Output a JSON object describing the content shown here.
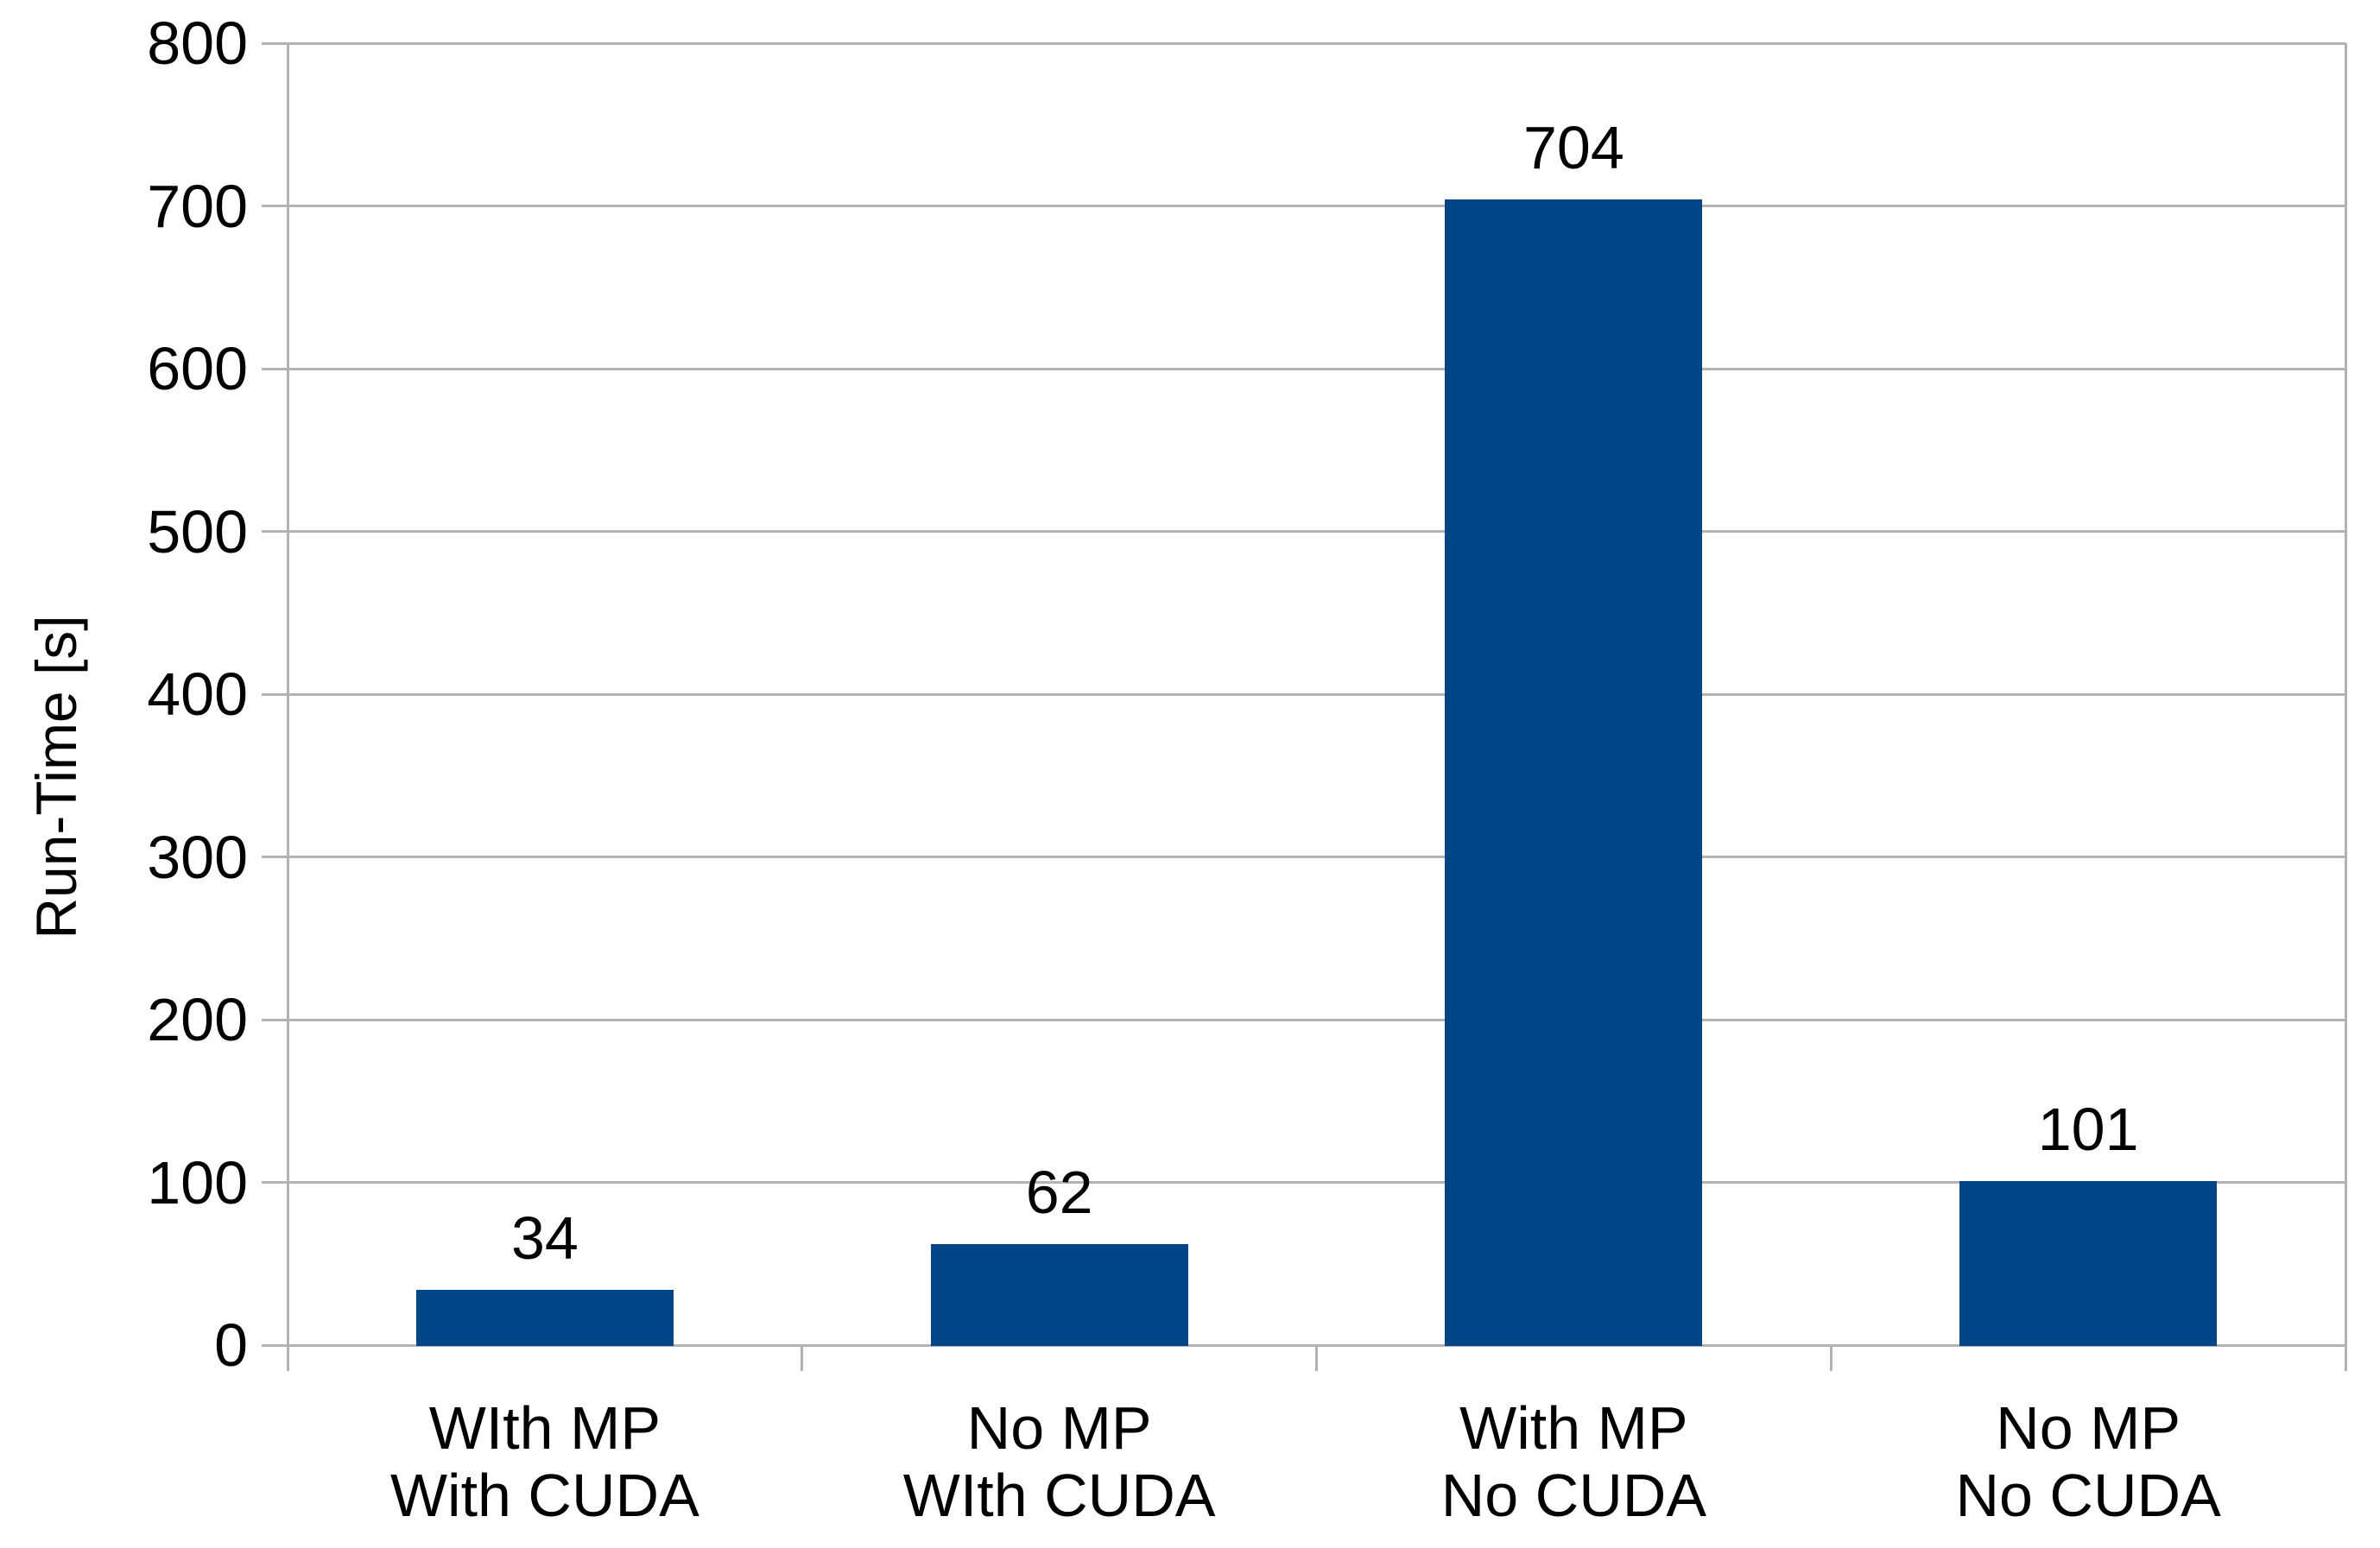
{
  "colors": {
    "background": "#ffffff",
    "bar": "#004586",
    "grid": "#b3b3b3",
    "text": "#000000"
  },
  "chart_data": {
    "type": "bar",
    "categories": [
      "WIth MP\nWith CUDA",
      "No MP\nWIth CUDA",
      "With MP\nNo CUDA",
      "No MP\nNo CUDA"
    ],
    "values": [
      34,
      62,
      704,
      101
    ],
    "data_labels": [
      "34",
      "62",
      "704",
      "101"
    ],
    "title": "",
    "xlabel": "",
    "ylabel": "Run-Time [s]",
    "ylim": [
      0,
      800
    ],
    "ytick_step": 100,
    "ytick_labels": [
      "0",
      "100",
      "200",
      "300",
      "400",
      "500",
      "600",
      "700",
      "800"
    ],
    "grid": "horizontal",
    "legend": "none",
    "bar_color": "#004586"
  }
}
